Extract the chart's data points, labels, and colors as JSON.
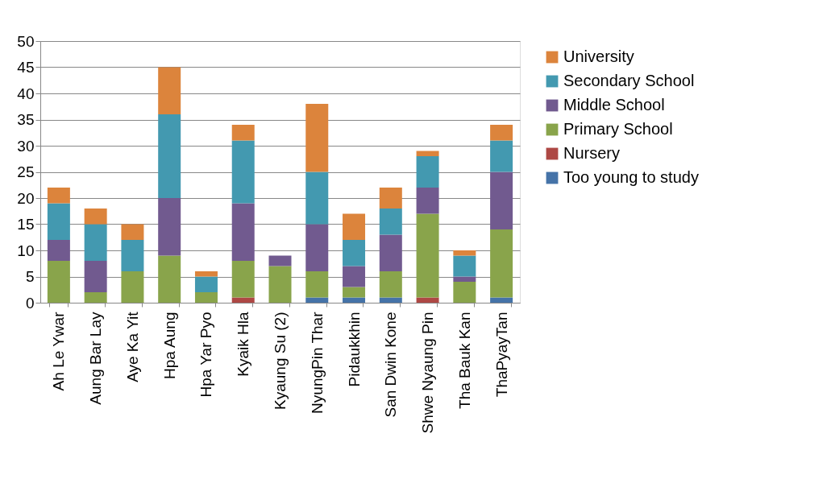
{
  "chart_data": {
    "type": "bar",
    "stacked": true,
    "categories": [
      "Ah Le Ywar",
      "Aung Bar Lay",
      "Aye Ka Yit",
      "Hpa Aung",
      "Hpa Yar Pyo",
      "Kyaik Hla",
      "Kyaung Su (2)",
      "NyungPin Thar",
      "Pidaukkhin",
      "San Dwin Kone",
      "Shwe Nyaung Pin",
      "Tha Bauk Kan",
      "ThaPyayTan"
    ],
    "series": [
      {
        "name": "Too young to study",
        "color": "#4573a8",
        "values": [
          0,
          0,
          0,
          0,
          0,
          0,
          0,
          1,
          1,
          1,
          0,
          0,
          1
        ]
      },
      {
        "name": "Nursery",
        "color": "#ae4844",
        "values": [
          0,
          0,
          0,
          0,
          0,
          1,
          0,
          0,
          0,
          0,
          1,
          0,
          0
        ]
      },
      {
        "name": "Primary School",
        "color": "#89a44b",
        "values": [
          8,
          2,
          6,
          9,
          2,
          7,
          7,
          5,
          2,
          5,
          16,
          4,
          13
        ]
      },
      {
        "name": "Middle School",
        "color": "#715a8f",
        "values": [
          4,
          6,
          0,
          11,
          0,
          11,
          2,
          9,
          4,
          7,
          5,
          1,
          11
        ]
      },
      {
        "name": "Secondary School",
        "color": "#4399b0",
        "values": [
          7,
          7,
          6,
          16,
          3,
          12,
          0,
          10,
          5,
          5,
          6,
          4,
          6
        ]
      },
      {
        "name": "University",
        "color": "#dc843c",
        "values": [
          3,
          3,
          3,
          9,
          1,
          3,
          0,
          13,
          5,
          4,
          1,
          1,
          3
        ]
      }
    ],
    "ylim": [
      0,
      50
    ],
    "yticks": [
      0,
      5,
      10,
      15,
      20,
      25,
      30,
      35,
      40,
      45,
      50
    ],
    "grid": "y",
    "legend": "right"
  }
}
